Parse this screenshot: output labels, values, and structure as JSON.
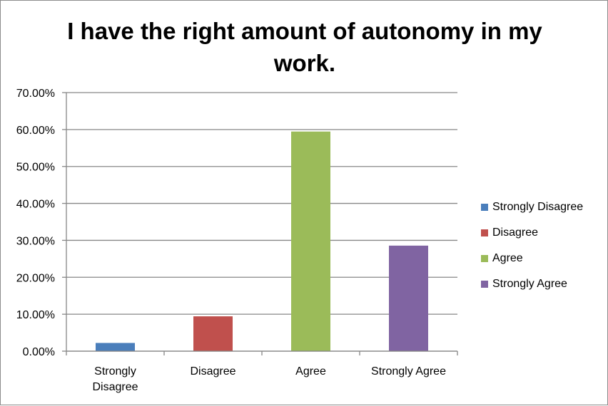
{
  "chart_data": {
    "type": "bar",
    "title": "I have the right amount of autonomy in my work.",
    "categories": [
      "Strongly Disagree",
      "Disagree",
      "Agree",
      "Strongly Agree"
    ],
    "category_labels": [
      [
        "Strongly",
        "Disagree"
      ],
      [
        "Disagree"
      ],
      [
        "Agree"
      ],
      [
        "Strongly Agree"
      ]
    ],
    "values": [
      0.0222,
      0.0943,
      0.5946,
      0.2857
    ],
    "colors": [
      "#4a7ebb",
      "#c0504d",
      "#9bbb59",
      "#8064a2"
    ],
    "ylim": [
      0,
      0.7
    ],
    "yticks": [
      0,
      0.1,
      0.2,
      0.3,
      0.4,
      0.5,
      0.6,
      0.7
    ],
    "ytick_labels": [
      "0.00%",
      "10.00%",
      "20.00%",
      "30.00%",
      "40.00%",
      "50.00%",
      "60.00%",
      "70.00%"
    ],
    "grid": true,
    "legend_position": "right",
    "legend": [
      "Strongly Disagree",
      "Disagree",
      "Agree",
      "Strongly Agree"
    ]
  }
}
